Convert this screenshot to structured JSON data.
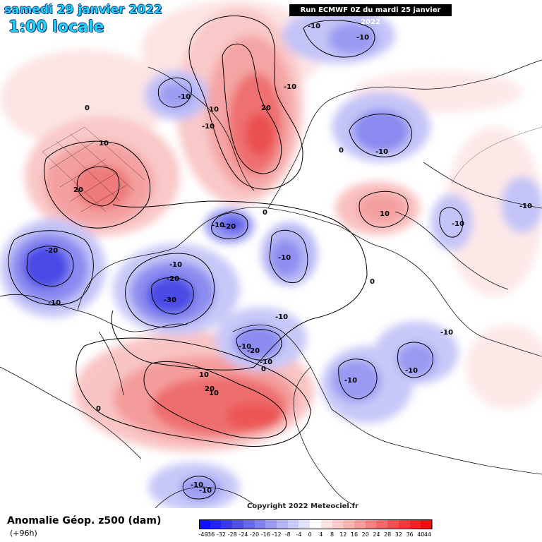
{
  "header": {
    "date": "samedi 29 janvier 2022",
    "time": "1:00 locale",
    "run": "Run ECMWF 0Z du mardi 25 janvier 2022"
  },
  "footer": {
    "title": "Anomalie Géop. z500 (dam)",
    "subtitle": "(+96h)",
    "copyright": "Copyright 2022 Meteociel.fr"
  },
  "legend": {
    "labels": [
      "-40",
      "-36",
      "-32",
      "-28",
      "-24",
      "-20",
      "-16",
      "-12",
      "-8",
      "-4",
      "0",
      "4",
      "8",
      "12",
      "16",
      "20",
      "24",
      "28",
      "32",
      "36",
      "40",
      "44"
    ],
    "colors": [
      "#1010ff",
      "#2424f0",
      "#3a3ae6",
      "#5050e6",
      "#6868ea",
      "#8080ee",
      "#9a9af2",
      "#b4b4f6",
      "#cacafa",
      "#e2e2fc",
      "#ffffff",
      "#fde2e2",
      "#fccaca",
      "#f9b4b4",
      "#f69c9c",
      "#f48282",
      "#f26a6a",
      "#f05050",
      "#ee3a3a",
      "#ec2424",
      "#ea1010"
    ]
  },
  "map": {
    "contour_labels": [
      {
        "text": "-10"
      },
      {
        "text": "-10"
      },
      {
        "text": "-10"
      },
      {
        "text": "-10"
      },
      {
        "text": "10"
      },
      {
        "text": "20"
      },
      {
        "text": "0"
      },
      {
        "text": "10"
      },
      {
        "text": "-10"
      },
      {
        "text": "0"
      },
      {
        "text": "-10"
      },
      {
        "text": "10"
      },
      {
        "text": "20"
      },
      {
        "text": "0"
      },
      {
        "text": "-10"
      },
      {
        "text": "-20"
      },
      {
        "text": "-10"
      },
      {
        "text": "-10"
      },
      {
        "text": "-20"
      },
      {
        "text": "-10"
      },
      {
        "text": "-10"
      },
      {
        "text": "-20"
      },
      {
        "text": "-30"
      },
      {
        "text": "-10"
      },
      {
        "text": "0"
      },
      {
        "text": "-10"
      },
      {
        "text": "-10"
      },
      {
        "text": "-10"
      },
      {
        "text": "-10"
      },
      {
        "text": "-10"
      },
      {
        "text": "-20"
      },
      {
        "text": "-10"
      },
      {
        "text": "0"
      },
      {
        "text": "10"
      },
      {
        "text": "20"
      },
      {
        "text": "-10"
      },
      {
        "text": "-10"
      },
      {
        "text": "10"
      },
      {
        "text": "0"
      }
    ]
  }
}
